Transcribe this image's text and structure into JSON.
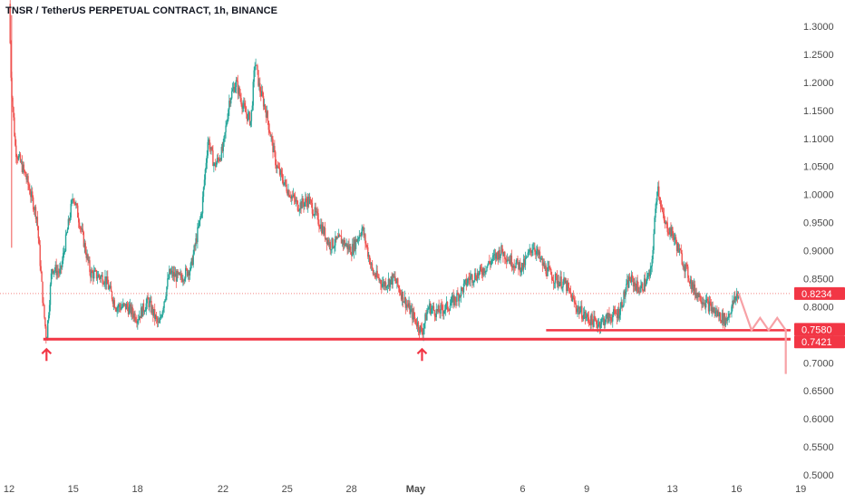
{
  "chart_data": {
    "type": "candlestick",
    "title": "TNSR / TetherUS PERPETUAL CONTRACT, 1h, BINANCE",
    "ylim": [
      0.5,
      1.32
    ],
    "y_ticks": [
      "1.3000",
      "1.2500",
      "1.2000",
      "1.1500",
      "1.1000",
      "1.0500",
      "1.0000",
      "0.9500",
      "0.9000",
      "0.8500",
      "0.8000",
      "0.7500",
      "0.7000",
      "0.6500",
      "0.6000",
      "0.5500",
      "0.5000"
    ],
    "x_ticks": [
      {
        "label": "12",
        "t": 0
      },
      {
        "label": "15",
        "t": 3
      },
      {
        "label": "18",
        "t": 6
      },
      {
        "label": "22",
        "t": 10
      },
      {
        "label": "25",
        "t": 13
      },
      {
        "label": "28",
        "t": 16
      },
      {
        "label": "May",
        "t": 19
      },
      {
        "label": "6",
        "t": 24
      },
      {
        "label": "9",
        "t": 27
      },
      {
        "label": "13",
        "t": 31
      },
      {
        "label": "16",
        "t": 34
      },
      {
        "label": "19",
        "t": 37
      }
    ],
    "price_path": [
      [
        0.0,
        1.34
      ],
      [
        0.1,
        1.2
      ],
      [
        0.3,
        1.08
      ],
      [
        0.8,
        1.03
      ],
      [
        1.3,
        0.96
      ],
      [
        1.6,
        0.8
      ],
      [
        1.75,
        0.742
      ],
      [
        2.0,
        0.87
      ],
      [
        2.4,
        0.86
      ],
      [
        3.0,
        1.0
      ],
      [
        3.3,
        0.95
      ],
      [
        3.8,
        0.86
      ],
      [
        4.5,
        0.85
      ],
      [
        5.0,
        0.8
      ],
      [
        5.5,
        0.8
      ],
      [
        6.0,
        0.78
      ],
      [
        6.5,
        0.81
      ],
      [
        7.0,
        0.765
      ],
      [
        7.5,
        0.86
      ],
      [
        8.0,
        0.85
      ],
      [
        8.5,
        0.87
      ],
      [
        9.0,
        0.97
      ],
      [
        9.3,
        1.1
      ],
      [
        9.6,
        1.05
      ],
      [
        10.0,
        1.08
      ],
      [
        10.3,
        1.17
      ],
      [
        10.6,
        1.2
      ],
      [
        11.0,
        1.15
      ],
      [
        11.3,
        1.13
      ],
      [
        11.5,
        1.24
      ],
      [
        11.7,
        1.19
      ],
      [
        12.0,
        1.15
      ],
      [
        12.5,
        1.05
      ],
      [
        13.0,
        1.01
      ],
      [
        13.5,
        0.98
      ],
      [
        14.0,
        0.99
      ],
      [
        14.5,
        0.95
      ],
      [
        15.0,
        0.91
      ],
      [
        15.5,
        0.92
      ],
      [
        16.0,
        0.9
      ],
      [
        16.5,
        0.94
      ],
      [
        17.0,
        0.86
      ],
      [
        17.5,
        0.84
      ],
      [
        18.0,
        0.85
      ],
      [
        18.5,
        0.81
      ],
      [
        19.0,
        0.775
      ],
      [
        19.3,
        0.754
      ],
      [
        19.6,
        0.8
      ],
      [
        20.0,
        0.79
      ],
      [
        20.5,
        0.8
      ],
      [
        21.0,
        0.82
      ],
      [
        21.5,
        0.85
      ],
      [
        22.0,
        0.86
      ],
      [
        22.5,
        0.88
      ],
      [
        23.0,
        0.9
      ],
      [
        23.5,
        0.88
      ],
      [
        24.0,
        0.87
      ],
      [
        24.5,
        0.91
      ],
      [
        25.0,
        0.87
      ],
      [
        25.5,
        0.85
      ],
      [
        26.0,
        0.84
      ],
      [
        26.5,
        0.8
      ],
      [
        27.0,
        0.78
      ],
      [
        27.5,
        0.77
      ],
      [
        28.0,
        0.78
      ],
      [
        28.5,
        0.79
      ],
      [
        29.0,
        0.85
      ],
      [
        29.5,
        0.83
      ],
      [
        30.0,
        0.86
      ],
      [
        30.3,
        1.02
      ],
      [
        30.6,
        0.95
      ],
      [
        31.0,
        0.93
      ],
      [
        31.3,
        0.9
      ],
      [
        31.7,
        0.86
      ],
      [
        32.0,
        0.83
      ],
      [
        32.5,
        0.81
      ],
      [
        33.0,
        0.79
      ],
      [
        33.5,
        0.775
      ],
      [
        34.0,
        0.82
      ],
      [
        34.1,
        0.8234
      ]
    ],
    "current_price": "0.8234",
    "levels": [
      {
        "label": "0.7580",
        "value": 0.758
      },
      {
        "label": "0.7421",
        "value": 0.7421
      }
    ],
    "projection": [
      [
        34.1,
        0.8234
      ],
      [
        34.7,
        0.758
      ],
      [
        35.1,
        0.78
      ],
      [
        35.5,
        0.758
      ],
      [
        35.9,
        0.78
      ],
      [
        36.3,
        0.758
      ],
      [
        36.3,
        0.68
      ]
    ],
    "arrows": [
      {
        "t": 1.75,
        "value": 0.742
      },
      {
        "t": 19.3,
        "value": 0.742
      }
    ],
    "colors": {
      "up": "#26a69a",
      "down": "#ef5350",
      "level": "#f23645",
      "projection": "#f7a1a6",
      "text": "#131722",
      "axis_text": "#4a4a4a"
    }
  }
}
